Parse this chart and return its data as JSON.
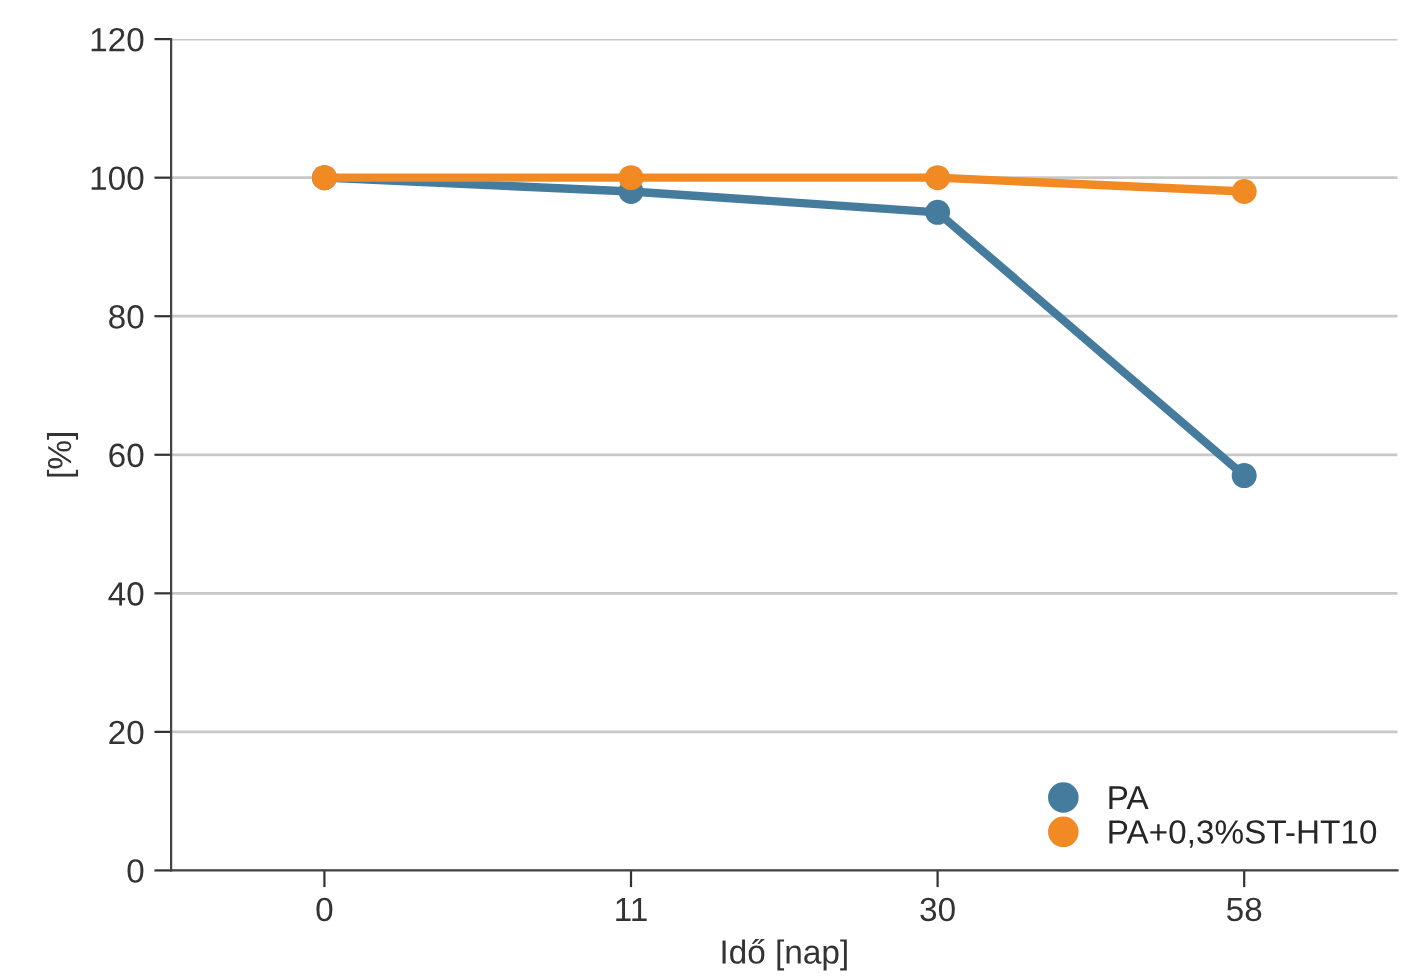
{
  "chart_data": {
    "type": "line",
    "xlabel": "Idő [nap]",
    "ylabel": "[%]",
    "categories": [
      "0",
      "11",
      "30",
      "58"
    ],
    "series": [
      {
        "name": "PA",
        "color": "#457b9d",
        "values": [
          100,
          98,
          95,
          57
        ]
      },
      {
        "name": "PA+0,3%ST-HT10",
        "color": "#f28a24",
        "values": [
          100,
          100,
          100,
          98
        ]
      }
    ],
    "ylim": [
      0,
      120
    ],
    "yticks": [
      0,
      20,
      40,
      60,
      80,
      100,
      120
    ],
    "grid": "y",
    "legend": "bottom right",
    "marker": "circle",
    "line_style": "solid"
  }
}
